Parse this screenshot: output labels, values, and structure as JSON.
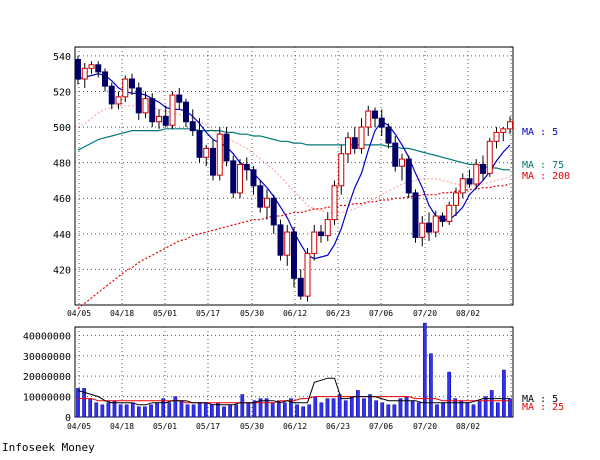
{
  "source_label": "Infoseek Money",
  "chart_data": [
    {
      "type": "candlestick",
      "title": "",
      "x_tick_labels": [
        "04/05",
        "04/18",
        "05/01",
        "05/17",
        "05/30",
        "06/12",
        "06/23",
        "07/06",
        "07/20",
        "08/02"
      ],
      "y_tick_labels": [
        "540",
        "520",
        "500",
        "480",
        "460",
        "440",
        "420"
      ],
      "ylim": [
        400,
        545
      ],
      "grid": true,
      "colors": {
        "up": "#cc0000",
        "down": "#000066",
        "ma5": "#0000cc",
        "ma75": "#007777",
        "ma200": "#ee0000",
        "ma25": "#ff9999"
      },
      "legend": [
        {
          "label": "MA : 5",
          "color": "#0000cc"
        },
        {
          "label": "MA : 75",
          "color": "#007777"
        },
        {
          "label": "MA : 200",
          "color": "#ee0000"
        }
      ],
      "candles": [
        [
          538,
          540,
          524,
          527
        ],
        [
          527,
          536,
          522,
          533
        ],
        [
          533,
          537,
          530,
          535
        ],
        [
          535,
          537,
          528,
          531
        ],
        [
          531,
          533,
          520,
          523
        ],
        [
          523,
          525,
          510,
          513
        ],
        [
          513,
          520,
          510,
          517
        ],
        [
          517,
          529,
          514,
          527
        ],
        [
          527,
          530,
          518,
          522
        ],
        [
          522,
          525,
          504,
          508
        ],
        [
          508,
          520,
          505,
          516
        ],
        [
          516,
          519,
          500,
          503
        ],
        [
          503,
          510,
          499,
          506
        ],
        [
          506,
          512,
          500,
          501
        ],
        [
          501,
          520,
          499,
          518
        ],
        [
          518,
          522,
          510,
          514
        ],
        [
          514,
          516,
          500,
          503
        ],
        [
          503,
          510,
          495,
          498
        ],
        [
          498,
          505,
          480,
          483
        ],
        [
          483,
          490,
          478,
          488
        ],
        [
          488,
          493,
          470,
          473
        ],
        [
          473,
          500,
          470,
          496
        ],
        [
          496,
          500,
          478,
          481
        ],
        [
          481,
          484,
          460,
          463
        ],
        [
          463,
          482,
          460,
          479
        ],
        [
          479,
          483,
          470,
          476
        ],
        [
          476,
          478,
          462,
          467
        ],
        [
          467,
          470,
          452,
          455
        ],
        [
          455,
          465,
          448,
          460
        ],
        [
          460,
          462,
          440,
          445
        ],
        [
          445,
          448,
          425,
          428
        ],
        [
          428,
          445,
          422,
          441
        ],
        [
          441,
          444,
          410,
          415
        ],
        [
          415,
          420,
          403,
          405
        ],
        [
          405,
          432,
          402,
          429
        ],
        [
          429,
          445,
          425,
          441
        ],
        [
          441,
          445,
          435,
          439
        ],
        [
          439,
          452,
          436,
          448
        ],
        [
          448,
          470,
          445,
          467
        ],
        [
          467,
          490,
          462,
          485
        ],
        [
          485,
          497,
          480,
          494
        ],
        [
          494,
          500,
          485,
          488
        ],
        [
          488,
          505,
          485,
          500
        ],
        [
          500,
          512,
          495,
          509
        ],
        [
          509,
          511,
          500,
          505
        ],
        [
          505,
          510,
          495,
          500
        ],
        [
          500,
          502,
          488,
          491
        ],
        [
          491,
          495,
          475,
          478
        ],
        [
          478,
          485,
          470,
          482
        ],
        [
          482,
          484,
          460,
          463
        ],
        [
          463,
          465,
          435,
          438
        ],
        [
          438,
          450,
          433,
          446
        ],
        [
          446,
          452,
          436,
          441
        ],
        [
          441,
          453,
          438,
          450
        ],
        [
          450,
          452,
          444,
          447
        ],
        [
          447,
          458,
          445,
          456
        ],
        [
          456,
          466,
          450,
          463
        ],
        [
          463,
          474,
          460,
          471
        ],
        [
          471,
          476,
          466,
          468
        ],
        [
          468,
          482,
          465,
          479
        ],
        [
          479,
          484,
          470,
          474
        ],
        [
          474,
          494,
          472,
          492
        ],
        [
          492,
          500,
          488,
          497
        ],
        [
          497,
          500,
          492,
          499
        ],
        [
          499,
          506,
          496,
          503
        ]
      ],
      "ma5": [
        527,
        528,
        529,
        530,
        529,
        526,
        522,
        520,
        519,
        519,
        518,
        516,
        514,
        511,
        510,
        510,
        509,
        506,
        502,
        497,
        493,
        491,
        489,
        485,
        480,
        478,
        474,
        470,
        466,
        461,
        455,
        449,
        441,
        434,
        428,
        426,
        427,
        428,
        434,
        443,
        455,
        466,
        474,
        487,
        498,
        503,
        501,
        496,
        490,
        483,
        474,
        466,
        456,
        450,
        448,
        448,
        451,
        455,
        462,
        466,
        470,
        475,
        481,
        486,
        490
      ],
      "ma75": [
        487,
        489,
        491,
        493,
        494,
        495,
        496,
        497,
        498,
        498,
        498,
        498,
        498,
        499,
        499,
        499,
        499,
        499,
        498,
        498,
        498,
        498,
        497,
        497,
        496,
        496,
        495,
        495,
        494,
        493,
        492,
        492,
        491,
        491,
        490,
        490,
        490,
        490,
        490,
        490,
        490,
        490,
        490,
        490,
        490,
        490,
        489,
        489,
        488,
        488,
        487,
        486,
        485,
        484,
        483,
        482,
        481,
        480,
        479,
        479,
        478,
        477,
        477,
        476,
        476
      ],
      "ma25": [
        500,
        502,
        505,
        508,
        510,
        511,
        512,
        512,
        512,
        512,
        512,
        511,
        510,
        509,
        508,
        507,
        506,
        505,
        503,
        501,
        498,
        496,
        494,
        492,
        490,
        488,
        485,
        482,
        479,
        476,
        472,
        468,
        464,
        460,
        456,
        454,
        453,
        452,
        452,
        452,
        453,
        454,
        456,
        458,
        460,
        462,
        464,
        466,
        468,
        469,
        470,
        471,
        471,
        471,
        470,
        469,
        468,
        467,
        467,
        467,
        468,
        469,
        470,
        471,
        472
      ],
      "ma200": [
        398,
        401,
        404,
        407,
        410,
        413,
        416,
        419,
        421,
        424,
        426,
        428,
        430,
        432,
        434,
        436,
        437,
        439,
        440,
        441,
        442,
        443,
        444,
        445,
        446,
        447,
        448,
        448,
        449,
        450,
        450,
        451,
        452,
        452,
        453,
        454,
        454,
        455,
        455,
        456,
        456,
        457,
        457,
        458,
        458,
        459,
        459,
        460,
        460,
        461,
        461,
        462,
        462,
        462,
        463,
        463,
        464,
        464,
        465,
        465,
        466,
        466,
        467,
        467,
        468
      ]
    },
    {
      "type": "bar",
      "title": "",
      "y_tick_labels": [
        "40000000",
        "30000000",
        "20000000",
        "10000000",
        "0"
      ],
      "ylim": [
        0,
        48000000
      ],
      "grid": true,
      "legend": [
        {
          "label": "MA : 5",
          "color": "#000000"
        },
        {
          "label": "MA : 25",
          "color": "#ee0000"
        }
      ],
      "volume": [
        14000000,
        9000000,
        7000000,
        6000000,
        7000000,
        8000000,
        6000000,
        6000000,
        7000000,
        5000000,
        6000000,
        7000000,
        9000000,
        7000000,
        10000000,
        8000000,
        6000000,
        6000000,
        7000000,
        6000000,
        7000000,
        5000000,
        6000000,
        6000000,
        11000000,
        7000000,
        8000000,
        9000000,
        7000000,
        8000000,
        7000000,
        9000000,
        6000000,
        5000000,
        6000000,
        10000000,
        7000000,
        9000000,
        11000000,
        8000000,
        10000000,
        13000000,
        9000000,
        11000000,
        8000000,
        7000000,
        6000000,
        9000000,
        10000000,
        8000000,
        7000000,
        6000000,
        5000000,
        6000000,
        7000000,
        9000000,
        8000000,
        7000000,
        6000000,
        8000000,
        10000000,
        13000000,
        7000000,
        8000000,
        9000000
      ],
      "extra_spikes": [
        [
          57,
          46000000
        ],
        [
          58,
          31000000
        ],
        [
          61,
          22000000
        ],
        [
          70,
          23000000
        ]
      ],
      "ma5_vol": [
        13000000,
        12000000,
        11000000,
        10000000,
        8000000,
        7000000,
        7000000,
        7000000,
        7000000,
        6000000,
        6000000,
        7000000,
        7000000,
        7000000,
        8000000,
        8000000,
        8000000,
        7000000,
        7000000,
        7000000,
        6000000,
        6000000,
        6000000,
        6000000,
        7000000,
        7000000,
        7000000,
        8000000,
        8000000,
        8000000,
        7000000,
        8000000,
        7000000,
        7000000,
        7000000,
        17000000,
        18000000,
        19000000,
        19000000,
        9000000,
        9000000,
        10000000,
        10000000,
        10000000,
        10000000,
        9000000,
        8000000,
        8000000,
        8000000,
        8000000,
        8000000,
        7000000,
        7000000,
        7000000,
        7000000,
        7000000,
        7000000,
        7000000,
        7000000,
        8000000,
        9000000,
        9000000,
        9000000,
        9000000,
        9000000
      ],
      "ma25_vol": [
        9000000,
        9000000,
        9000000,
        8000000,
        8000000,
        8000000,
        8000000,
        8000000,
        8000000,
        8000000,
        8000000,
        8000000,
        8000000,
        8000000,
        8000000,
        8000000,
        7000000,
        7000000,
        7000000,
        7000000,
        7000000,
        7000000,
        7000000,
        7000000,
        7000000,
        7000000,
        7000000,
        7000000,
        7000000,
        7000000,
        8000000,
        8000000,
        8000000,
        9000000,
        9000000,
        10000000,
        10000000,
        10000000,
        10000000,
        10000000,
        10000000,
        10000000,
        10000000,
        10000000,
        10000000,
        10000000,
        10000000,
        10000000,
        10000000,
        10000000,
        9000000,
        9000000,
        9000000,
        9000000,
        8000000,
        8000000,
        8000000,
        8000000,
        8000000,
        8000000,
        8000000,
        8000000,
        8000000,
        8000000,
        8000000
      ]
    }
  ]
}
